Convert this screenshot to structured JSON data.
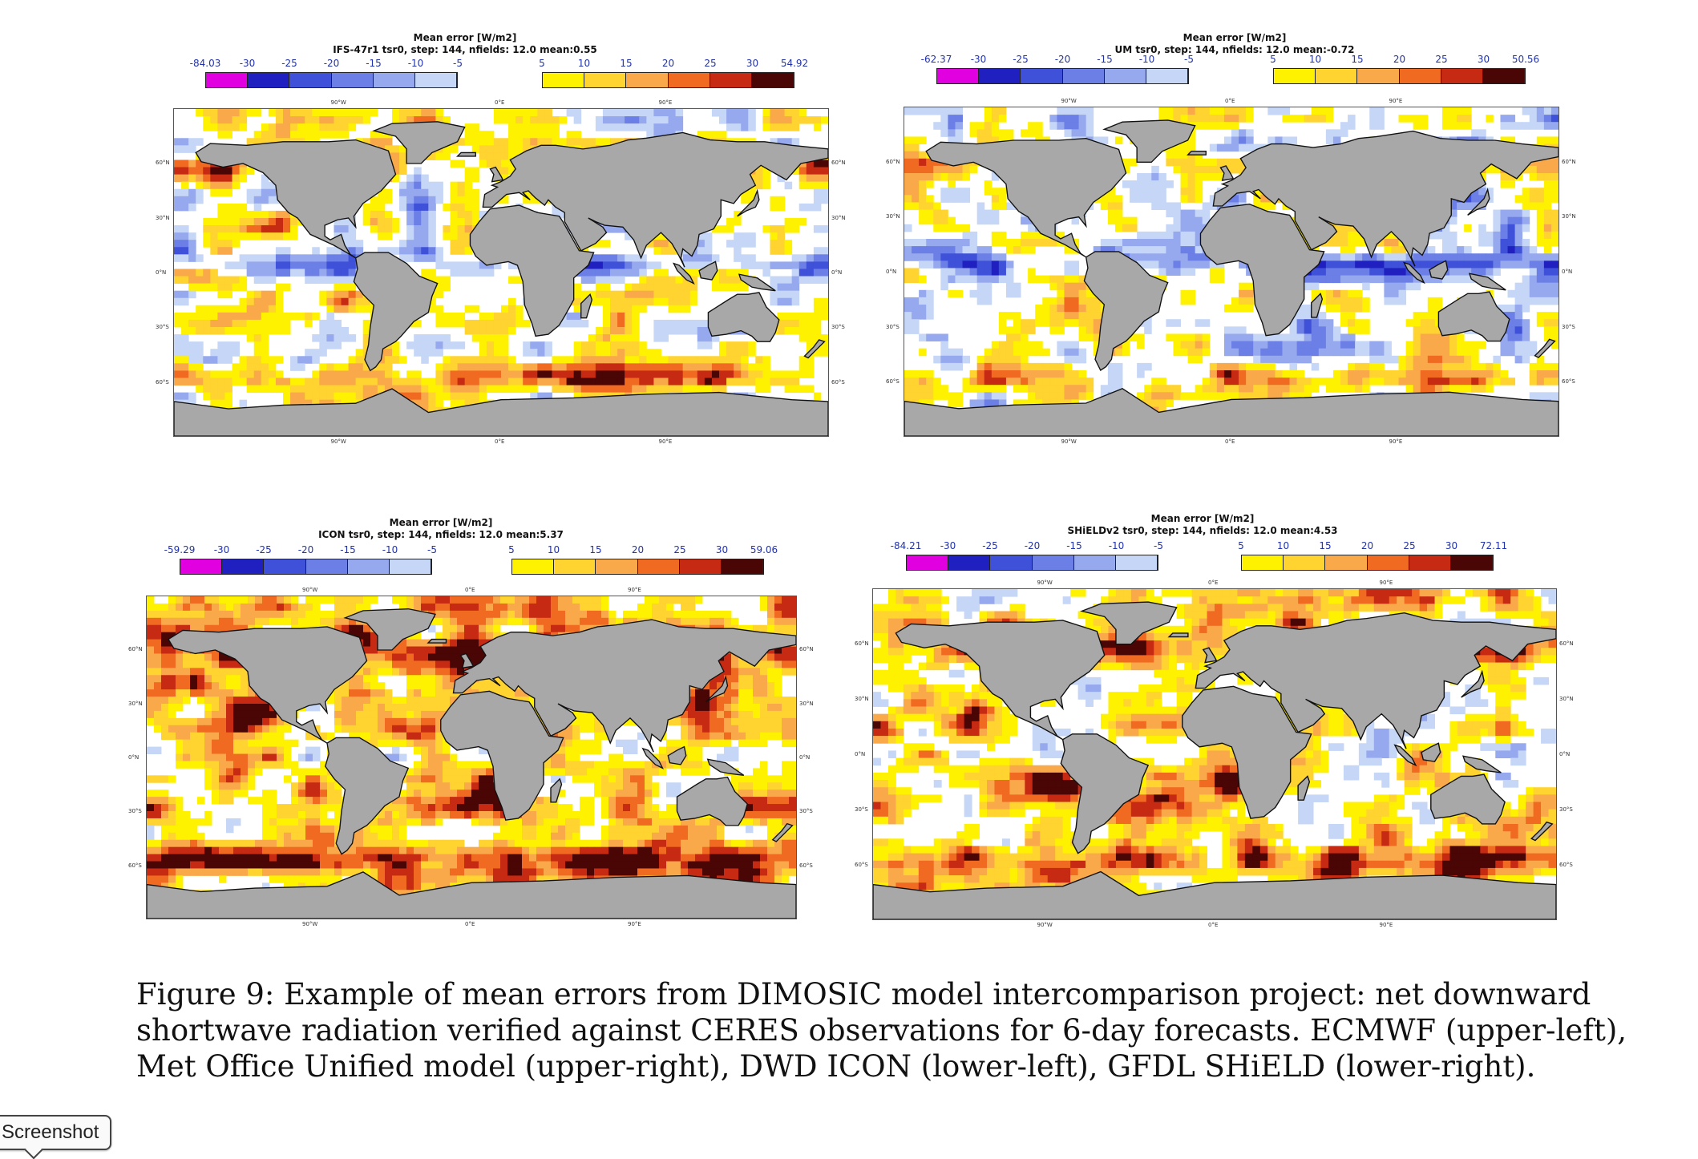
{
  "colors": {
    "neg": [
      "#e000e0",
      "#2020c0",
      "#3f51d8",
      "#6b7fe6",
      "#97a9ee",
      "#c6d6f6"
    ],
    "pos": [
      "#fff200",
      "#ffd330",
      "#f9a94a",
      "#f06a22",
      "#c62a12",
      "#4a0505"
    ],
    "land": "#a8a8a8",
    "coast": "#111111"
  },
  "axis_labels": {
    "lon": [
      "90°W",
      "0°E",
      "90°E"
    ],
    "lat_left": [
      "60°N",
      "30°N",
      "0°N",
      "30°S",
      "60°S"
    ],
    "lat_right": [
      "60°N",
      "30°N",
      "0°N",
      "30°S",
      "60°S"
    ]
  },
  "panels": [
    {
      "id": "ifs",
      "title": "Mean error [W/m2]",
      "subtitle": "IFS-47r1 tsr0, step: 144, nfields: 12.0 mean:0.55",
      "neg_ticks": [
        "-84.03",
        "-30",
        "-25",
        "-20",
        "-15",
        "-10",
        "-5"
      ],
      "pos_ticks": [
        "5",
        "10",
        "15",
        "20",
        "25",
        "30",
        "54.92"
      ],
      "bias": 0.55,
      "icon": "mean-error-map"
    },
    {
      "id": "um",
      "title": "Mean error [W/m2]",
      "subtitle": "UM tsr0, step: 144, nfields: 12.0 mean:-0.72",
      "neg_ticks": [
        "-62.37",
        "-30",
        "-25",
        "-20",
        "-15",
        "-10",
        "-5"
      ],
      "pos_ticks": [
        "5",
        "10",
        "15",
        "20",
        "25",
        "30",
        "50.56"
      ],
      "bias": -0.72,
      "icon": "mean-error-map"
    },
    {
      "id": "icon",
      "title": "Mean error [W/m2]",
      "subtitle": "ICON tsr0, step: 144, nfields: 12.0 mean:5.37",
      "neg_ticks": [
        "-59.29",
        "-30",
        "-25",
        "-20",
        "-15",
        "-10",
        "-5"
      ],
      "pos_ticks": [
        "5",
        "10",
        "15",
        "20",
        "25",
        "30",
        "59.06"
      ],
      "bias": 5.37,
      "icon": "mean-error-map"
    },
    {
      "id": "shield",
      "title": "Mean error [W/m2]",
      "subtitle": "SHiELDv2 tsr0, step: 144, nfields: 12.0 mean:4.53",
      "neg_ticks": [
        "-84.21",
        "-30",
        "-25",
        "-20",
        "-15",
        "-10",
        "-5"
      ],
      "pos_ticks": [
        "5",
        "10",
        "15",
        "20",
        "25",
        "30",
        "72.11"
      ],
      "bias": 4.53,
      "icon": "mean-error-map"
    }
  ],
  "caption": "Figure 9: Example of mean errors from DIMOSIC model intercomparison project: net downward shortwave radiation verified against CERES observations for 6-day forecasts. ECMWF (upper-left), Met Office Unified model (upper-right), DWD ICON (lower-left), GFDL SHiELD (lower-right).",
  "screenshot_button": "Screenshot"
}
